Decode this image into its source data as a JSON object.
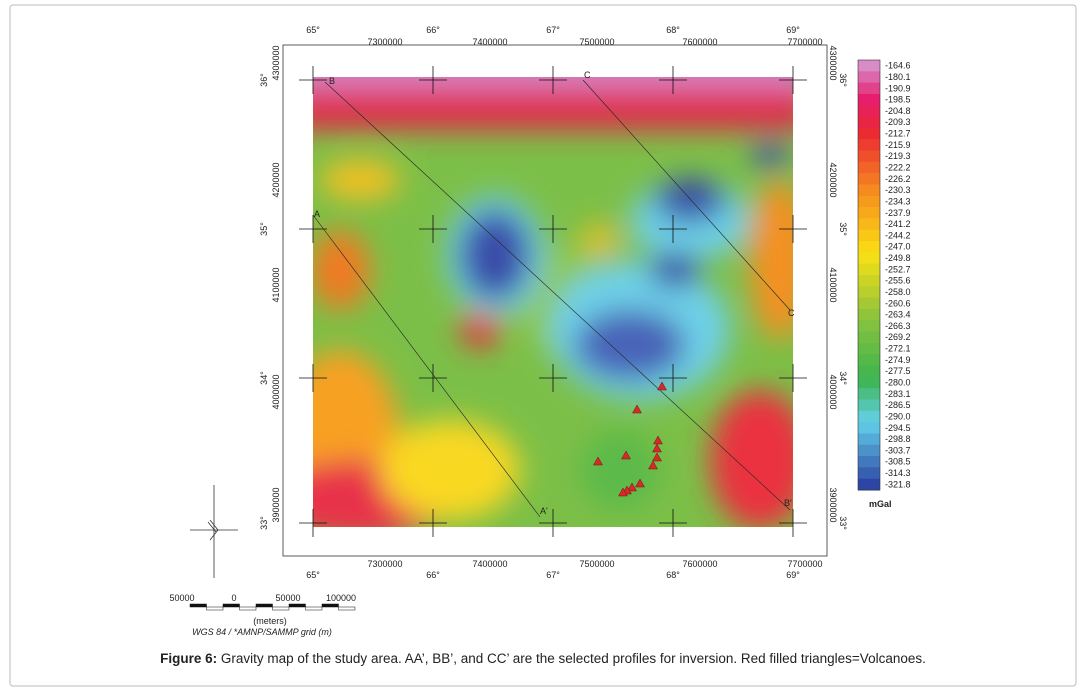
{
  "map": {
    "top_degrees": [
      "65°",
      "66°",
      "67°",
      "68°",
      "69°"
    ],
    "top_eastings": [
      "7300000",
      "7400000",
      "7500000",
      "7600000",
      "7700000"
    ],
    "bottom_eastings": [
      "7300000",
      "7400000",
      "7500000",
      "7600000",
      "7700000"
    ],
    "bottom_degrees": [
      "65°",
      "66°",
      "67°",
      "68°",
      "69°"
    ],
    "left_degrees": [
      "36°",
      "35°",
      "34°",
      "33°"
    ],
    "left_northings": [
      "4300000",
      "4200000",
      "4100000",
      "4000000",
      "3900000"
    ],
    "right_degrees": [
      "36°",
      "35°",
      "34°",
      "33°"
    ],
    "right_northings": [
      "4300000",
      "4200000",
      "4100000",
      "4000000",
      "3900000"
    ],
    "profile_labels": [
      "A",
      "A'",
      "B",
      "B'",
      "C",
      "C"
    ]
  },
  "colorbar": {
    "labels": [
      "-164.6",
      "-180.1",
      "-190.9",
      "-198.5",
      "-204.8",
      "-209.3",
      "-212.7",
      "-215.9",
      "-219.3",
      "-222.2",
      "-226.2",
      "-230.3",
      "-234.3",
      "-237.9",
      "-241.2",
      "-244.2",
      "-247.0",
      "-249.8",
      "-252.7",
      "-255.6",
      "-258.0",
      "-260.6",
      "-263.4",
      "-266.3",
      "-269.2",
      "-272.1",
      "-274.9",
      "-277.5",
      "-280.0",
      "-283.1",
      "-286.5",
      "-290.0",
      "-294.5",
      "-298.8",
      "-303.7",
      "-308.5",
      "-314.3",
      "-321.8"
    ],
    "unit": "mGal"
  },
  "scale_bar": {
    "ticks": [
      "50000",
      "0",
      "50000",
      "100000"
    ],
    "unit": "(meters)",
    "projection": "WGS 84 / *AMNP/SAMMP grid (m)"
  },
  "caption": {
    "label": "Figure 6:",
    "text": " Gravity map of the study area. AA’, BB’, and CC’ are the selected profiles for inversion. Red filled triangles=Volcanoes."
  }
}
